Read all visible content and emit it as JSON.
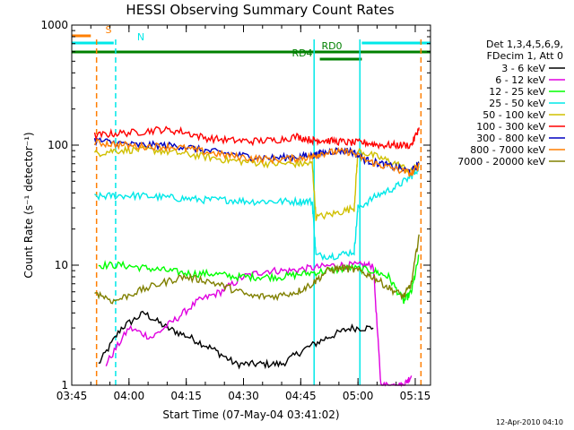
{
  "chart_data": {
    "type": "line",
    "title": "HESSI Observing Summary Count Rates",
    "xlabel": "Start Time (07-May-04 03:41:02)",
    "ylabel": "Count Rate (s⁻¹ detector⁻¹)",
    "y_scale": "log",
    "ylim": [
      1,
      1000
    ],
    "xlim_minutes": [
      225,
      319
    ],
    "x_ticks": [
      {
        "label": "03:45",
        "min": 225
      },
      {
        "label": "04:00",
        "min": 240
      },
      {
        "label": "04:15",
        "min": 255
      },
      {
        "label": "04:30",
        "min": 270
      },
      {
        "label": "04:45",
        "min": 285
      },
      {
        "label": "05:00",
        "min": 300
      },
      {
        "label": "05:15",
        "min": 315
      }
    ],
    "y_ticks": [
      {
        "label": "1",
        "value": 1
      },
      {
        "label": "10",
        "value": 10
      },
      {
        "label": "100",
        "value": 100
      },
      {
        "label": "1000",
        "value": 1000
      }
    ],
    "legend_header": [
      "Det 1,3,4,5,6,9,",
      "FDecim 1, Att 0"
    ],
    "series": [
      {
        "name": "3 - 6 keV",
        "color": "#000000",
        "x": [
          232,
          238,
          244,
          250,
          256,
          262,
          268,
          274,
          280,
          286,
          292,
          298,
          304
        ],
        "y": [
          1.5,
          3,
          4,
          3,
          2.5,
          2,
          1.5,
          1.5,
          1.5,
          2,
          2.5,
          3,
          3
        ]
      },
      {
        "name": "6 - 12 keV",
        "color": "#e000e0",
        "x": [
          234,
          240,
          246,
          252,
          258,
          264,
          270,
          276,
          282,
          288,
          294,
          300,
          304,
          306,
          310,
          312,
          314
        ],
        "y": [
          1.5,
          3,
          2.5,
          3.5,
          5,
          6,
          8,
          9,
          9,
          9.5,
          10,
          10,
          10,
          1,
          1,
          1,
          1.2
        ]
      },
      {
        "name": "12 - 25 keV",
        "color": "#00ff00",
        "x": [
          232,
          238,
          244,
          250,
          256,
          262,
          268,
          274,
          280,
          286,
          292,
          298,
          304,
          308,
          312,
          314,
          316
        ],
        "y": [
          10,
          10,
          9.5,
          9,
          8.5,
          8.5,
          8,
          8,
          8,
          8.5,
          9,
          9.5,
          9,
          8,
          5,
          6,
          12
        ]
      },
      {
        "name": "25 - 50 keV",
        "color": "#00e8e8",
        "x": [
          231,
          236,
          242,
          248,
          254,
          260,
          266,
          272,
          278,
          284,
          288,
          289,
          294,
          299,
          300,
          305,
          310,
          314,
          316
        ],
        "y": [
          37,
          38,
          38,
          37,
          36,
          35,
          35,
          34,
          34,
          34,
          34,
          12,
          12,
          13,
          30,
          38,
          45,
          55,
          65
        ]
      },
      {
        "name": "50 - 100 keV",
        "color": "#d0c000",
        "x": [
          231,
          236,
          242,
          248,
          254,
          260,
          266,
          272,
          278,
          284,
          288,
          289,
          294,
          299,
          300,
          305,
          310,
          314,
          316
        ],
        "y": [
          85,
          90,
          92,
          90,
          85,
          80,
          75,
          72,
          70,
          70,
          70,
          25,
          27,
          30,
          90,
          80,
          70,
          60,
          70
        ]
      },
      {
        "name": "100 - 300 keV",
        "color": "#ff0000",
        "x": [
          231,
          236,
          242,
          248,
          254,
          260,
          266,
          272,
          278,
          284,
          288,
          290,
          294,
          298,
          302,
          306,
          310,
          314,
          316
        ],
        "y": [
          120,
          125,
          128,
          135,
          130,
          115,
          110,
          108,
          110,
          118,
          110,
          110,
          108,
          105,
          105,
          100,
          100,
          100,
          140
        ]
      },
      {
        "name": "300 - 800 keV",
        "color": "#0000c0",
        "x": [
          231,
          236,
          242,
          248,
          254,
          260,
          266,
          272,
          278,
          284,
          288,
          290,
          294,
          298,
          302,
          306,
          310,
          314,
          316
        ],
        "y": [
          110,
          105,
          100,
          100,
          98,
          90,
          85,
          80,
          78,
          80,
          82,
          85,
          90,
          90,
          75,
          70,
          65,
          60,
          70
        ]
      },
      {
        "name": "800 - 7000 keV",
        "color": "#ff7f00",
        "x": [
          231,
          236,
          242,
          248,
          254,
          260,
          266,
          272,
          278,
          284,
          288,
          290,
          294,
          298,
          302,
          306,
          310,
          314,
          316
        ],
        "y": [
          105,
          102,
          98,
          98,
          95,
          88,
          82,
          78,
          76,
          78,
          80,
          85,
          88,
          88,
          75,
          68,
          63,
          58,
          68
        ]
      },
      {
        "name": "7000 - 20000 keV",
        "color": "#808000",
        "x": [
          231,
          236,
          242,
          248,
          254,
          260,
          266,
          272,
          278,
          284,
          288,
          292,
          296,
          300,
          304,
          308,
          312,
          314,
          316
        ],
        "y": [
          6,
          5,
          6,
          7,
          8,
          7.5,
          6.5,
          5.5,
          5.5,
          6,
          7,
          9,
          9.5,
          9,
          8,
          6.5,
          5.5,
          7,
          18
        ]
      }
    ],
    "bars": [
      {
        "name": "S",
        "color": "#ff7f00",
        "x": [
          225,
          230
        ]
      },
      {
        "name": "N",
        "color": "#00e8e8",
        "x": [
          225,
          236
        ],
        "x2": [
          301,
          319
        ]
      },
      {
        "name": "RD0",
        "color": "#008000",
        "x": [
          225,
          319
        ]
      },
      {
        "name": "RD4",
        "color": "#008000",
        "x": [
          290,
          301
        ]
      }
    ],
    "vlines": [
      {
        "min": 231.5,
        "color": "#ff7f00",
        "dashed": true
      },
      {
        "min": 236.5,
        "color": "#00e8e8",
        "dashed": true
      },
      {
        "min": 288.5,
        "color": "#00e8e8",
        "dashed": false
      },
      {
        "min": 300.5,
        "color": "#00e8e8",
        "dashed": false
      },
      {
        "min": 316.5,
        "color": "#ff7f00",
        "dashed": true
      }
    ],
    "footer_stamp": "12-Apr-2010 04:10"
  }
}
